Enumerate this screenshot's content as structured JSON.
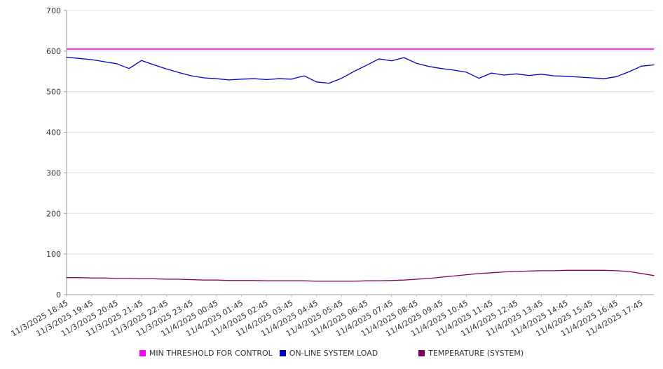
{
  "chart_data": {
    "type": "line",
    "title": "",
    "xlabel": "",
    "ylabel": "",
    "ylim": [
      0,
      700
    ],
    "y_tick_step": 100,
    "grid": true,
    "legend_position": "bottom",
    "points_per_tick": 2,
    "x_tick_labels": [
      "11/3/2025 18:45",
      "11/3/2025 19:45",
      "11/3/2025 20:45",
      "11/3/2025 21:45",
      "11/3/2025 22:45",
      "11/3/2025 23:45",
      "11/4/2025 00:45",
      "11/4/2025 01:45",
      "11/4/2025 02:45",
      "11/4/2025 03:45",
      "11/4/2025 04:45",
      "11/4/2025 05:45",
      "11/4/2025 06:45",
      "11/4/2025 07:45",
      "11/4/2025 08:45",
      "11/4/2025 09:45",
      "11/4/2025 10:45",
      "11/4/2025 11:45",
      "11/4/2025 12:45",
      "11/4/2025 13:45",
      "11/4/2025 14:45",
      "11/4/2025 15:45",
      "11/4/2025 16:45",
      "11/4/2025 17:45"
    ],
    "series": [
      {
        "name": "MIN THRESHOLD FOR CONTROL",
        "color": "#ff00ff",
        "style": "hline",
        "value": 605
      },
      {
        "name": "ON-LINE SYSTEM LOAD",
        "color": "#0000cd",
        "style": "line",
        "values": [
          585,
          582,
          579,
          574,
          569,
          557,
          577,
          566,
          556,
          547,
          539,
          534,
          532,
          529,
          531,
          532,
          530,
          532,
          531,
          539,
          524,
          521,
          533,
          550,
          565,
          581,
          576,
          584,
          570,
          562,
          557,
          553,
          548,
          533,
          546,
          541,
          544,
          540,
          543,
          539,
          538,
          536,
          534,
          532,
          537,
          549,
          563,
          566
        ]
      },
      {
        "name": "TEMPERATURE (SYSTEM)",
        "color": "#800060",
        "style": "line",
        "values": [
          42,
          42,
          41,
          41,
          40,
          40,
          39,
          39,
          38,
          38,
          37,
          36,
          36,
          35,
          35,
          35,
          34,
          34,
          34,
          34,
          33,
          33,
          33,
          33,
          34,
          34,
          35,
          36,
          38,
          40,
          43,
          46,
          49,
          52,
          54,
          56,
          57,
          58,
          59,
          59,
          60,
          60,
          60,
          60,
          59,
          57,
          52,
          47
        ]
      }
    ]
  }
}
